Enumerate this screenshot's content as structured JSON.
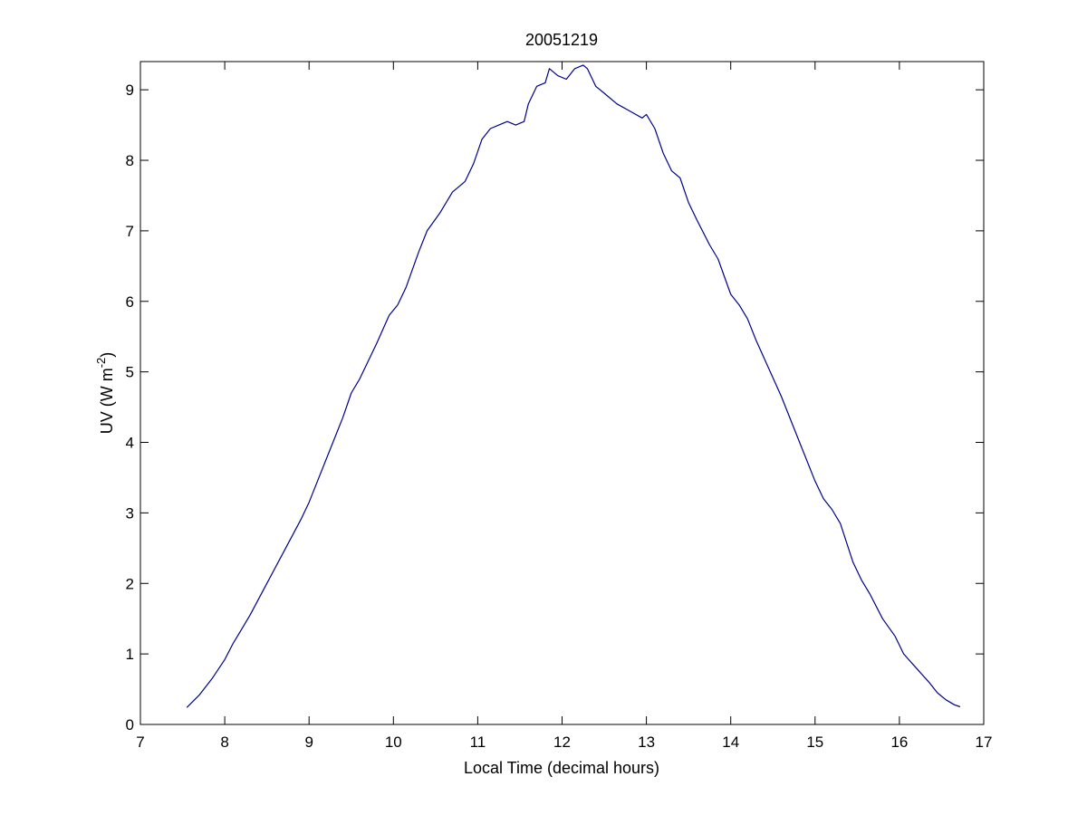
{
  "chart_data": {
    "type": "line",
    "title": "20051219",
    "xlabel": "Local Time (decimal hours)",
    "ylabel": {
      "text": "UV (W m",
      "superscript": "-2",
      "suffix": ")"
    },
    "xlim": [
      7,
      17
    ],
    "ylim": [
      0,
      9.4
    ],
    "xticks": [
      7,
      8,
      9,
      10,
      11,
      12,
      13,
      14,
      15,
      16,
      17
    ],
    "yticks": [
      0,
      1,
      2,
      3,
      4,
      5,
      6,
      7,
      8,
      9
    ],
    "grid": false,
    "legend": "none",
    "series": [
      {
        "color": "#00008b",
        "x": [
          7.55,
          7.7,
          7.85,
          8.0,
          8.1,
          8.2,
          8.3,
          8.5,
          8.7,
          8.9,
          9.0,
          9.1,
          9.3,
          9.4,
          9.5,
          9.6,
          9.8,
          9.95,
          10.05,
          10.15,
          10.3,
          10.4,
          10.55,
          10.7,
          10.85,
          10.95,
          11.05,
          11.15,
          11.25,
          11.35,
          11.45,
          11.55,
          11.6,
          11.7,
          11.8,
          11.85,
          11.95,
          12.05,
          12.15,
          12.25,
          12.3,
          12.4,
          12.5,
          12.65,
          12.8,
          12.95,
          13.0,
          13.1,
          13.2,
          13.3,
          13.4,
          13.5,
          13.6,
          13.75,
          13.85,
          14.0,
          14.1,
          14.2,
          14.3,
          14.45,
          14.6,
          14.75,
          14.9,
          15.0,
          15.1,
          15.2,
          15.3,
          15.45,
          15.55,
          15.65,
          15.8,
          15.95,
          16.05,
          16.2,
          16.35,
          16.45,
          16.55,
          16.65,
          16.72
        ],
        "y": [
          0.24,
          0.42,
          0.65,
          0.92,
          1.15,
          1.35,
          1.55,
          2.0,
          2.45,
          2.9,
          3.15,
          3.45,
          4.05,
          4.35,
          4.7,
          4.9,
          5.4,
          5.8,
          5.95,
          6.2,
          6.7,
          7.0,
          7.25,
          7.55,
          7.7,
          7.95,
          8.3,
          8.45,
          8.5,
          8.55,
          8.5,
          8.55,
          8.8,
          9.05,
          9.1,
          9.3,
          9.2,
          9.15,
          9.3,
          9.35,
          9.3,
          9.05,
          8.95,
          8.8,
          8.7,
          8.6,
          8.65,
          8.45,
          8.1,
          7.85,
          7.75,
          7.4,
          7.15,
          6.8,
          6.6,
          6.1,
          5.95,
          5.75,
          5.45,
          5.05,
          4.65,
          4.2,
          3.75,
          3.45,
          3.2,
          3.05,
          2.85,
          2.3,
          2.05,
          1.85,
          1.5,
          1.25,
          1.0,
          0.8,
          0.6,
          0.45,
          0.35,
          0.28,
          0.25
        ]
      }
    ]
  }
}
